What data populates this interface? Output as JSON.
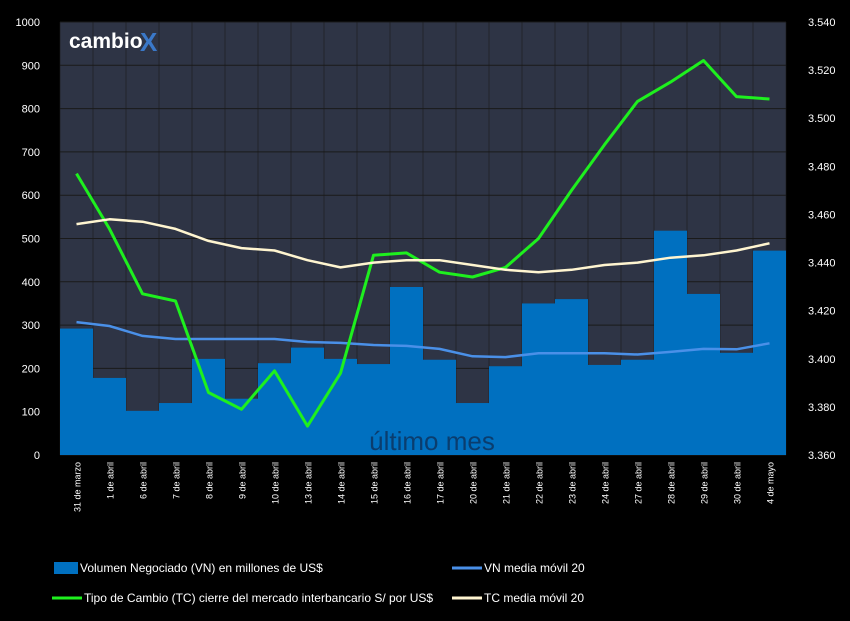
{
  "logo": {
    "text": "cambio",
    "mark": "X"
  },
  "chart_data": {
    "type": "bar",
    "title": "",
    "watermark": "último mes",
    "categories": [
      "31 de marzo",
      "1 de abril",
      "6 de abril",
      "7 de abril",
      "8 de abril",
      "9 de abril",
      "10 de abril",
      "13 de abril",
      "14 de abril",
      "15 de abril",
      "16 de abril",
      "17 de abril",
      "20 de abril",
      "21 de abril",
      "22 de abril",
      "23 de abril",
      "24 de abril",
      "27 de abril",
      "28 de abril",
      "29 de abril",
      "30 de abril",
      "4 de mayo"
    ],
    "y_left": {
      "min": 0,
      "max": 1000,
      "ticks": [
        "0",
        "100",
        "200",
        "300",
        "400",
        "500",
        "600",
        "700",
        "800",
        "900",
        "1000"
      ]
    },
    "y_right": {
      "min": 3.36,
      "max": 3.54,
      "ticks": [
        "3.360",
        "3.380",
        "3.400",
        "3.420",
        "3.440",
        "3.460",
        "3.480",
        "3.500",
        "3.520",
        "3.540"
      ]
    },
    "grid": true,
    "legend_position": "bottom",
    "series": [
      {
        "name": "Volumen Negociado (VN) en millones de US$",
        "kind": "bar",
        "axis": "left",
        "color": "#0070c0",
        "values": [
          292,
          178,
          102,
          120,
          222,
          130,
          212,
          248,
          222,
          210,
          388,
          220,
          120,
          205,
          350,
          360,
          208,
          220,
          518,
          372,
          236,
          472
        ]
      },
      {
        "name": "VN media móvil 20",
        "kind": "line",
        "axis": "left",
        "color": "#4a90e8",
        "values": [
          307,
          298,
          275,
          268,
          268,
          268,
          268,
          261,
          259,
          254,
          252,
          245,
          228,
          226,
          235,
          235,
          235,
          232,
          238,
          245,
          244,
          258
        ]
      },
      {
        "name": "Tipo de Cambio (TC) cierre del mercado interbancario S/ por US$",
        "kind": "line",
        "axis": "right",
        "color": "#1ef01e",
        "values": [
          3.477,
          3.454,
          3.427,
          3.424,
          3.386,
          3.379,
          3.395,
          3.372,
          3.394,
          3.443,
          3.444,
          3.436,
          3.434,
          3.438,
          3.45,
          3.47,
          3.489,
          3.507,
          3.515,
          3.524,
          3.509,
          3.508
        ]
      },
      {
        "name": "TC media móvil 20",
        "kind": "line",
        "axis": "right",
        "color": "#fff5d0",
        "values": [
          3.456,
          3.458,
          3.457,
          3.454,
          3.449,
          3.446,
          3.445,
          3.441,
          3.438,
          3.44,
          3.441,
          3.441,
          3.439,
          3.437,
          3.436,
          3.437,
          3.439,
          3.44,
          3.442,
          3.443,
          3.445,
          3.448
        ]
      }
    ]
  }
}
